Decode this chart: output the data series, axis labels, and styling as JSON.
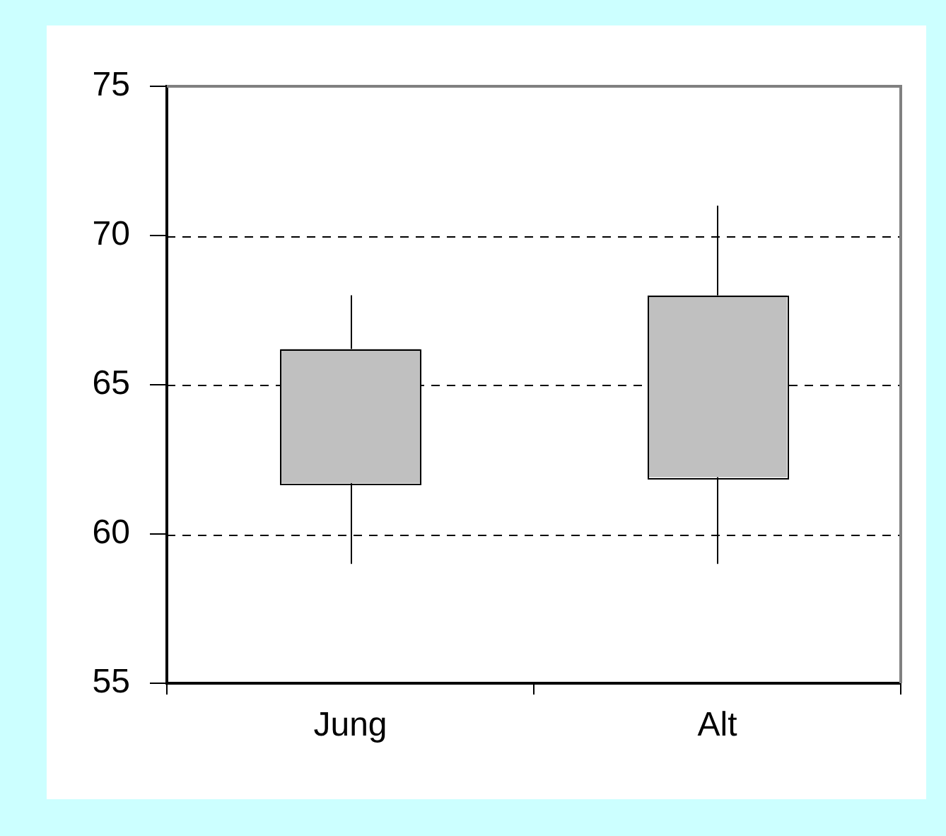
{
  "chart_data": {
    "type": "candlestick",
    "categories": [
      "Jung",
      "Alt"
    ],
    "ohlc": [
      [
        61.7,
        68,
        59,
        66.2
      ],
      [
        61.9,
        71,
        59,
        68
      ]
    ],
    "color": "#c0c0c0",
    "ylim": [
      55,
      75
    ],
    "yticks": [
      55,
      60,
      65,
      70,
      75
    ],
    "grid": "y"
  }
}
